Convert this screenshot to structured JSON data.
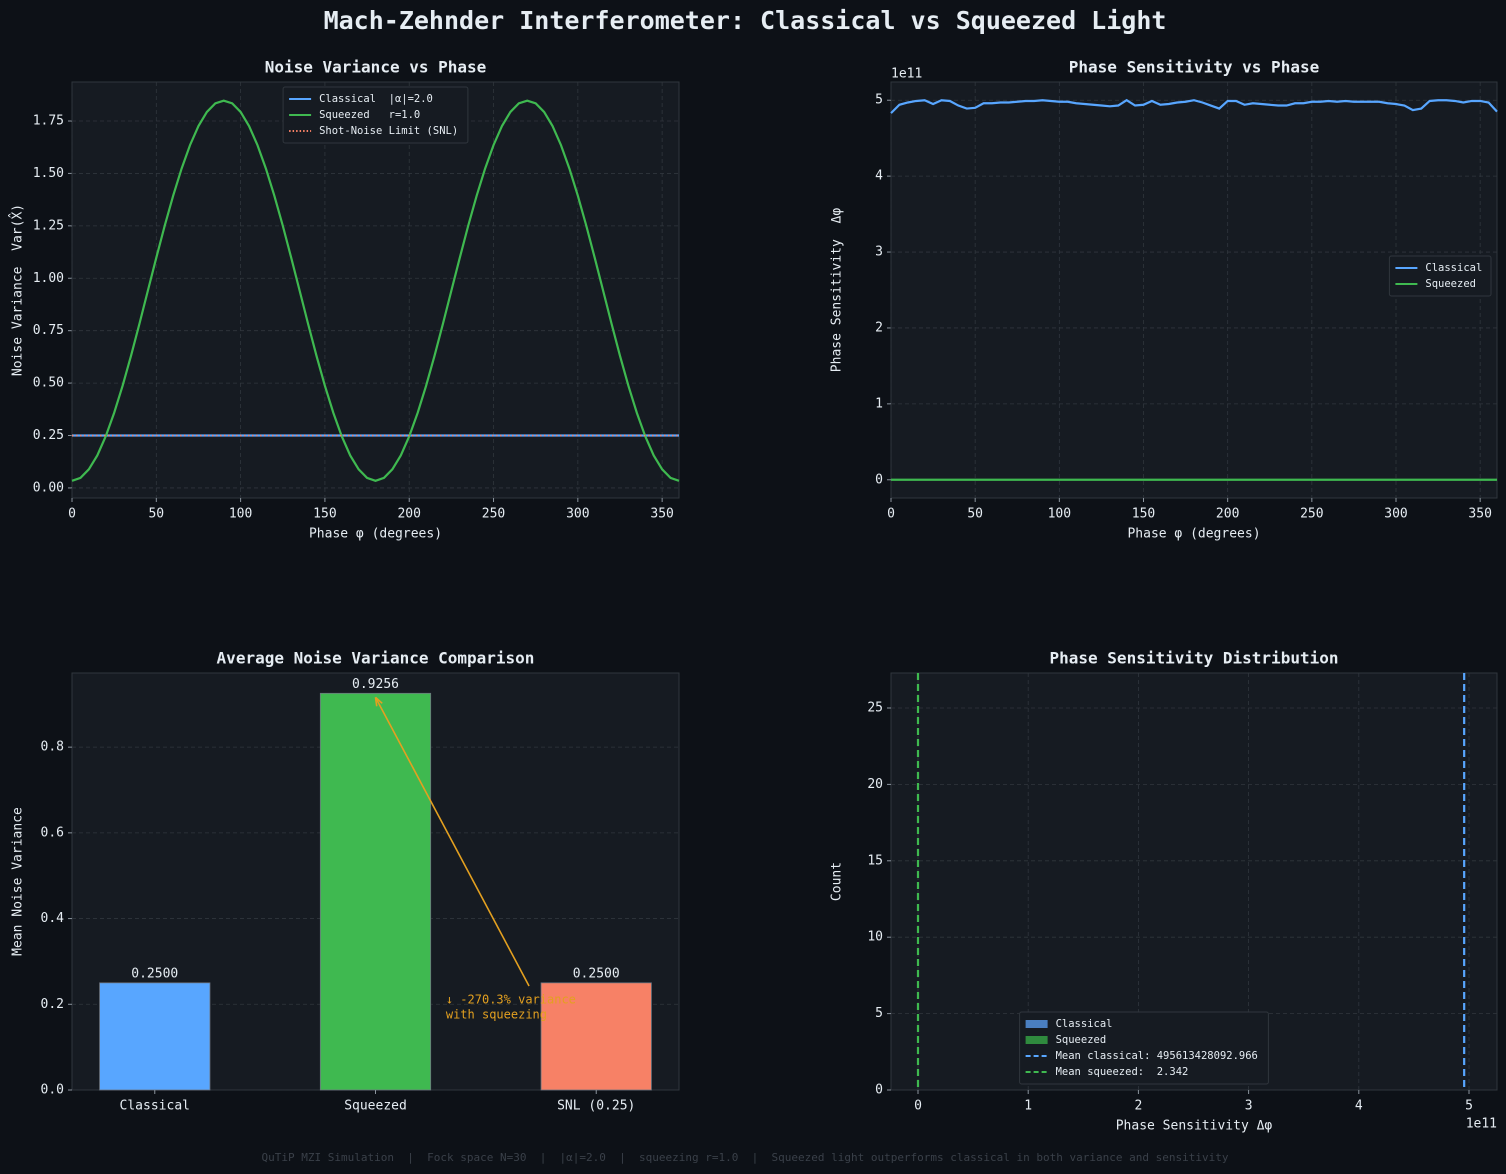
{
  "title": "Mach-Zehnder Interferometer: Classical vs Squeezed Light",
  "footer": "QuTiP MZI Simulation  |  Fock space N=30  |  |α|=2.0  |  squeezing r=1.0  |  Squeezed light outperforms classical in both variance and sensitivity",
  "chart_data": [
    {
      "type": "line",
      "title": "Noise Variance vs Phase",
      "xlabel": "Phase φ (degrees)",
      "ylabel": "Noise Variance  Var(X̂)",
      "x": [
        0,
        5,
        10,
        15,
        20,
        25,
        30,
        35,
        40,
        45,
        50,
        55,
        60,
        65,
        70,
        75,
        80,
        85,
        90,
        95,
        100,
        105,
        110,
        115,
        120,
        125,
        130,
        135,
        140,
        145,
        150,
        155,
        160,
        165,
        170,
        175,
        180,
        185,
        190,
        195,
        200,
        205,
        210,
        215,
        220,
        225,
        230,
        235,
        240,
        245,
        250,
        255,
        260,
        265,
        270,
        275,
        280,
        285,
        290,
        295,
        300,
        305,
        310,
        315,
        320,
        325,
        330,
        335,
        340,
        345,
        350,
        355,
        360
      ],
      "series": [
        {
          "name": "Classical  |α|=2.0",
          "color": "#58a6ff",
          "values": [
            0.25,
            0.25,
            0.25,
            0.25,
            0.25,
            0.25,
            0.25,
            0.25,
            0.25,
            0.25,
            0.25,
            0.25,
            0.25,
            0.25,
            0.25,
            0.25,
            0.25,
            0.25,
            0.25,
            0.25,
            0.25,
            0.25,
            0.25,
            0.25,
            0.25,
            0.25,
            0.25,
            0.25,
            0.25,
            0.25,
            0.25,
            0.25,
            0.25,
            0.25,
            0.25,
            0.25,
            0.25,
            0.25,
            0.25,
            0.25,
            0.25,
            0.25,
            0.25,
            0.25,
            0.25,
            0.25,
            0.25,
            0.25,
            0.25,
            0.25,
            0.25,
            0.25,
            0.25,
            0.25,
            0.25,
            0.25,
            0.25,
            0.25,
            0.25,
            0.25,
            0.25,
            0.25,
            0.25,
            0.25,
            0.25,
            0.25,
            0.25,
            0.25,
            0.25,
            0.25,
            0.25,
            0.25,
            0.25
          ]
        },
        {
          "name": "Squeezed   r=1.0",
          "color": "#3fb950",
          "values": [
            0.034,
            0.048,
            0.089,
            0.155,
            0.246,
            0.358,
            0.487,
            0.63,
            0.783,
            0.941,
            1.098,
            1.251,
            1.394,
            1.523,
            1.635,
            1.726,
            1.793,
            1.834,
            1.847,
            1.834,
            1.793,
            1.726,
            1.635,
            1.523,
            1.394,
            1.251,
            1.098,
            0.941,
            0.783,
            0.63,
            0.487,
            0.358,
            0.246,
            0.155,
            0.089,
            0.048,
            0.034,
            0.048,
            0.089,
            0.155,
            0.246,
            0.358,
            0.487,
            0.63,
            0.783,
            0.941,
            1.098,
            1.251,
            1.394,
            1.523,
            1.635,
            1.726,
            1.793,
            1.834,
            1.847,
            1.834,
            1.793,
            1.726,
            1.635,
            1.523,
            1.394,
            1.251,
            1.098,
            0.941,
            0.783,
            0.63,
            0.487,
            0.358,
            0.246,
            0.155,
            0.089,
            0.048,
            0.034
          ]
        }
      ],
      "hlines": [
        {
          "name": "Shot-Noise Limit (SNL)",
          "value": 0.25,
          "color": "#f78166"
        }
      ],
      "xlim": [
        0,
        360
      ],
      "xticks": [
        0,
        50,
        100,
        150,
        200,
        250,
        300,
        350
      ],
      "ylim": [
        -0.048,
        1.936
      ],
      "yticks": [
        {
          "value": 0,
          "label": "0.00"
        },
        {
          "value": 0.25,
          "label": "0.25"
        },
        {
          "value": 0.5,
          "label": "0.50"
        },
        {
          "value": 0.75,
          "label": "0.75"
        },
        {
          "value": 1,
          "label": "1.00"
        },
        {
          "value": 1.25,
          "label": "1.25"
        },
        {
          "value": 1.5,
          "label": "1.50"
        },
        {
          "value": 1.75,
          "label": "1.75"
        }
      ],
      "grid": true,
      "legend": "upper center"
    },
    {
      "type": "line",
      "title": "Phase Sensitivity vs Phase",
      "xlabel": "Phase φ (degrees)",
      "ylabel": "Phase Sensitivity  Δφ",
      "y_offset_label": "1e11",
      "x": [
        0,
        5,
        10,
        15,
        20,
        25,
        30,
        35,
        40,
        45,
        50,
        55,
        60,
        65,
        70,
        75,
        80,
        85,
        90,
        95,
        100,
        105,
        110,
        115,
        120,
        125,
        130,
        135,
        140,
        145,
        150,
        155,
        160,
        165,
        170,
        175,
        180,
        185,
        190,
        195,
        200,
        205,
        210,
        215,
        220,
        225,
        230,
        235,
        240,
        245,
        250,
        255,
        260,
        265,
        270,
        275,
        280,
        285,
        290,
        295,
        300,
        305,
        310,
        315,
        320,
        325,
        330,
        335,
        340,
        345,
        350,
        355,
        360
      ],
      "series": [
        {
          "name": "Classical",
          "color": "#58a6ff",
          "values": [
            4.83,
            4.94,
            4.97,
            4.99,
            5.0,
            4.95,
            5.0,
            4.99,
            4.93,
            4.89,
            4.9,
            4.96,
            4.96,
            4.97,
            4.97,
            4.98,
            4.99,
            4.99,
            5.0,
            4.99,
            4.98,
            4.98,
            4.96,
            4.95,
            4.94,
            4.93,
            4.92,
            4.93,
            5.0,
            4.93,
            4.94,
            4.99,
            4.94,
            4.95,
            4.97,
            4.98,
            5.0,
            4.97,
            4.93,
            4.89,
            4.99,
            4.99,
            4.94,
            4.96,
            4.95,
            4.94,
            4.93,
            4.93,
            4.96,
            4.96,
            4.98,
            4.98,
            4.99,
            4.98,
            4.99,
            4.98,
            4.98,
            4.98,
            4.98,
            4.96,
            4.95,
            4.93,
            4.87,
            4.89,
            4.99,
            5.0,
            5.0,
            4.99,
            4.97,
            4.99,
            4.99,
            4.97,
            4.85
          ]
        },
        {
          "name": "Squeezed",
          "color": "#3fb950",
          "values": [
            0,
            0,
            0,
            0,
            0,
            0,
            0,
            0,
            0,
            0,
            0,
            0,
            0,
            0,
            0,
            0,
            0,
            0,
            0,
            0,
            0,
            0,
            0,
            0,
            0,
            0,
            0,
            0,
            0,
            0,
            0,
            0,
            0,
            0,
            0,
            0,
            0,
            0,
            0,
            0,
            0,
            0,
            0,
            0,
            0,
            0,
            0,
            0,
            0,
            0,
            0,
            0,
            0,
            0,
            0,
            0,
            0,
            0,
            0,
            0,
            0,
            0,
            0,
            0,
            0,
            0,
            0,
            0,
            0,
            0,
            0,
            0,
            0
          ]
        }
      ],
      "xlim": [
        0,
        360
      ],
      "xticks": [
        0,
        50,
        100,
        150,
        200,
        250,
        300,
        350
      ],
      "ylim": [
        -0.24,
        5.24
      ],
      "yticks": [
        0,
        1,
        2,
        3,
        4,
        5
      ],
      "grid": true,
      "legend": "center right"
    },
    {
      "type": "bar",
      "title": "Average Noise Variance Comparison",
      "ylabel": "Mean Noise Variance",
      "categories": [
        "Classical",
        "Squeezed",
        "SNL (0.25)"
      ],
      "values": [
        0.25,
        0.9256,
        0.25
      ],
      "value_labels": [
        "0.2500",
        "0.9256",
        "0.2500"
      ],
      "colors": [
        "#58a6ff",
        "#3fb950",
        "#f78166"
      ],
      "annotation": {
        "lines": [
          "↓ -270.3% variance",
          "with squeezing"
        ],
        "color": "#e3a020"
      },
      "ylim": [
        0,
        0.973
      ],
      "yticks": [
        {
          "value": 0,
          "label": "0.0"
        },
        {
          "value": 0.2,
          "label": "0.2"
        },
        {
          "value": 0.4,
          "label": "0.4"
        },
        {
          "value": 0.6,
          "label": "0.6"
        },
        {
          "value": 0.8,
          "label": "0.8"
        }
      ],
      "grid": true
    },
    {
      "type": "hist",
      "title": "Phase Sensitivity Distribution",
      "xlabel": "Phase Sensitivity Δφ",
      "ylabel": "Count",
      "x_offset_label": "1e11",
      "series": [
        {
          "name": "Classical",
          "color": "#4a7fc1"
        },
        {
          "name": "Squeezed",
          "color": "#2f8a3e"
        }
      ],
      "vlines": [
        {
          "name": "Mean classical: 495613428092.966",
          "value": 4.95613428092966,
          "color": "#58a6ff"
        },
        {
          "name": "Mean squeezed:  2.342",
          "value": 2.342e-11,
          "color": "#3fb950"
        }
      ],
      "xlim": [
        -0.245,
        5.254
      ],
      "xticks": [
        0,
        1,
        2,
        3,
        4,
        5
      ],
      "ylim": [
        0,
        27.29
      ],
      "yticks": [
        0,
        5,
        10,
        15,
        20,
        25
      ],
      "grid": true,
      "legend": "lower center"
    }
  ]
}
